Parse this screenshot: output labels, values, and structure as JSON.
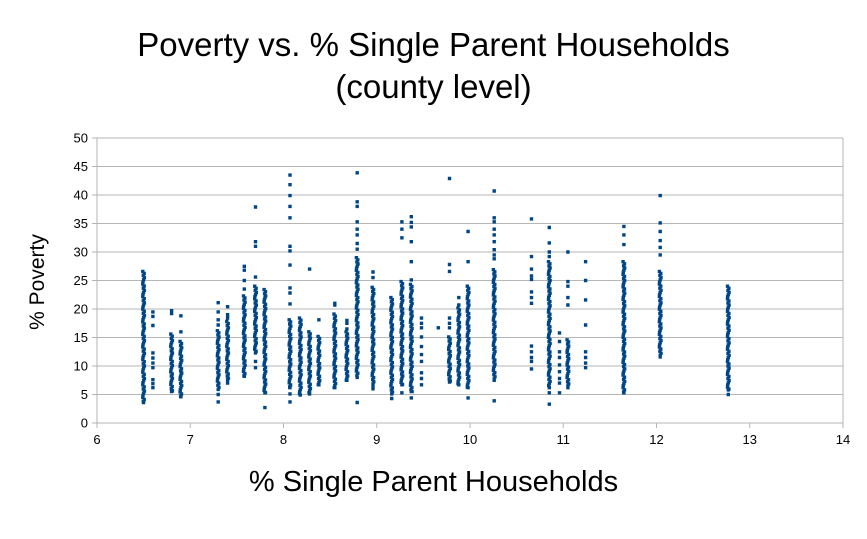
{
  "title": {
    "line1": "Poverty vs. % Single Parent Households",
    "line2": "(county level)"
  },
  "chart_data": {
    "type": "scatter",
    "title": "Poverty vs. % Single Parent Households (county level)",
    "xlabel": "% Single Parent Households",
    "ylabel": "% Poverty",
    "xlim": [
      6,
      14
    ],
    "ylim": [
      0,
      50
    ],
    "x_ticks": [
      6,
      7,
      8,
      9,
      10,
      11,
      12,
      13,
      14
    ],
    "y_ticks": [
      0,
      5,
      10,
      15,
      20,
      25,
      30,
      35,
      40,
      45,
      50
    ],
    "grid": true,
    "legend": "none",
    "point_color": "#004586",
    "grid_color": "#b6b6b6",
    "strips": [
      {
        "x": 6.5,
        "dense": [
          [
            3.6,
            26.6
          ]
        ],
        "points": []
      },
      {
        "x": 6.6,
        "dense": [],
        "points": [
          19.5,
          18.7,
          17.1,
          12.3,
          11.4,
          10.5,
          9.7,
          7.6,
          6.9,
          6.2
        ]
      },
      {
        "x": 6.8,
        "dense": [
          [
            5.5,
            15.6
          ]
        ],
        "points": [
          19.7,
          19.2
        ]
      },
      {
        "x": 6.9,
        "dense": [
          [
            4.6,
            14.3
          ]
        ],
        "points": [
          18.8,
          16.0
        ]
      },
      {
        "x": 7.3,
        "dense": [
          [
            5.9,
            16.2
          ]
        ],
        "points": [
          21.1,
          19.5,
          18.1,
          17.2,
          5.0,
          3.7
        ]
      },
      {
        "x": 7.4,
        "dense": [
          [
            7.6,
            17.8
          ]
        ],
        "points": [
          20.4,
          19.0,
          18.4,
          7.0
        ]
      },
      {
        "x": 7.58,
        "dense": [
          [
            8.2,
            22.3
          ]
        ],
        "points": [
          27.5,
          26.8,
          25.0,
          23.5
        ]
      },
      {
        "x": 7.7,
        "dense": [
          [
            12.3,
            24.0
          ]
        ],
        "points": [
          37.9,
          31.8,
          31.0,
          25.6,
          10.8,
          9.7
        ]
      },
      {
        "x": 7.8,
        "dense": [
          [
            5.3,
            23.4
          ]
        ],
        "points": [
          2.7
        ]
      },
      {
        "x": 8.07,
        "dense": [
          [
            6.2,
            18.1
          ]
        ],
        "points": [
          43.5,
          41.8,
          39.9,
          38.0,
          36.0,
          31.0,
          30.2,
          27.7,
          23.7,
          22.8,
          20.9,
          5.1,
          3.7
        ]
      },
      {
        "x": 8.18,
        "dense": [
          [
            4.9,
            18.4
          ]
        ],
        "points": []
      },
      {
        "x": 8.28,
        "dense": [
          [
            5.1,
            16.0
          ]
        ],
        "points": [
          27.0
        ]
      },
      {
        "x": 8.38,
        "dense": [
          [
            6.7,
            15.2
          ]
        ],
        "points": [
          18.1
        ]
      },
      {
        "x": 8.55,
        "dense": [
          [
            6.2,
            19.1
          ]
        ],
        "points": [
          21.0,
          20.7
        ]
      },
      {
        "x": 8.68,
        "dense": [
          [
            7.5,
            16.0
          ]
        ],
        "points": [
          18.0,
          17.5,
          16.5
        ]
      },
      {
        "x": 8.79,
        "dense": [
          [
            8.0,
            29.0
          ]
        ],
        "points": [
          43.9,
          38.8,
          38.0,
          35.3,
          34.0,
          33.0,
          31.5,
          30.5,
          3.6
        ]
      },
      {
        "x": 8.96,
        "dense": [
          [
            6.5,
            23.8
          ]
        ],
        "points": [
          26.5,
          25.5,
          6.0
        ]
      },
      {
        "x": 9.16,
        "dense": [
          [
            5.1,
            22.0
          ]
        ],
        "points": [
          4.3
        ]
      },
      {
        "x": 9.27,
        "dense": [
          [
            6.7,
            24.8
          ]
        ],
        "points": [
          35.3,
          34.0,
          32.5,
          5.3
        ]
      },
      {
        "x": 9.37,
        "dense": [
          [
            5.5,
            24.3
          ]
        ],
        "points": [
          36.2,
          35.2,
          34.4,
          31.8,
          28.3,
          25.1,
          4.4
        ]
      },
      {
        "x": 9.48,
        "dense": [],
        "points": [
          18.4,
          17.5,
          16.7,
          15.1,
          13.4,
          12.0,
          10.8,
          8.8,
          7.8,
          6.7
        ]
      },
      {
        "x": 9.66,
        "dense": [],
        "points": [
          16.7
        ]
      },
      {
        "x": 9.78,
        "dense": [
          [
            7.2,
            15.1
          ]
        ],
        "points": [
          42.9,
          27.8,
          26.6,
          18.4,
          17.5,
          16.7
        ]
      },
      {
        "x": 9.88,
        "dense": [
          [
            6.7,
            20.2
          ]
        ],
        "points": [
          22.0,
          20.7
        ]
      },
      {
        "x": 9.98,
        "dense": [
          [
            6.2,
            24.0
          ]
        ],
        "points": [
          33.6,
          28.3,
          4.4
        ]
      },
      {
        "x": 10.26,
        "dense": [
          [
            7.5,
            26.9
          ]
        ],
        "points": [
          40.7,
          36.0,
          35.3,
          34.0,
          33.0,
          31.8,
          30.4,
          29.5,
          28.8,
          3.9
        ]
      },
      {
        "x": 10.66,
        "dense": [],
        "points": [
          35.8,
          29.2,
          27.0,
          25.8,
          25.2,
          23.0,
          22.0,
          21.0,
          13.5,
          12.5,
          11.5,
          10.8,
          9.5
        ]
      },
      {
        "x": 10.85,
        "dense": [
          [
            6.2,
            28.3
          ]
        ],
        "points": [
          34.3,
          31.6,
          30.0,
          29.2,
          5.3,
          3.3
        ]
      },
      {
        "x": 10.96,
        "dense": [],
        "points": [
          15.8,
          14.3,
          12.5,
          11.5,
          10.2,
          9.0,
          7.8,
          7.0,
          5.3
        ]
      },
      {
        "x": 11.05,
        "dense": [
          [
            6.2,
            14.6
          ]
        ],
        "points": [
          30.0,
          24.8,
          24.0,
          22.0,
          20.7
        ]
      },
      {
        "x": 11.24,
        "dense": [],
        "points": [
          28.3,
          25.0,
          21.6,
          17.2,
          12.5,
          11.5,
          10.5,
          9.7
        ]
      },
      {
        "x": 11.65,
        "dense": [
          [
            5.3,
            28.3
          ]
        ],
        "points": [
          34.5,
          33.0,
          31.3
        ]
      },
      {
        "x": 12.04,
        "dense": [
          [
            11.6,
            26.6
          ]
        ],
        "points": [
          39.9,
          35.1,
          33.6,
          32.0,
          30.8,
          29.5
        ]
      },
      {
        "x": 12.77,
        "dense": [
          [
            5.8,
            24.0
          ]
        ],
        "points": [
          5.0
        ]
      }
    ]
  }
}
